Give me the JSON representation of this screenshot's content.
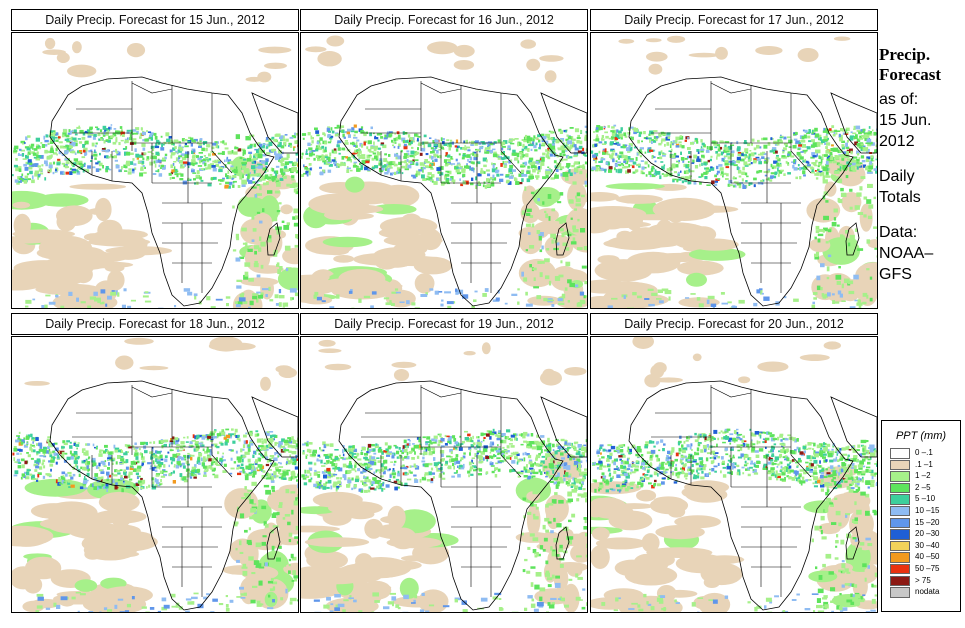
{
  "panels": [
    {
      "title": "Daily Precip. Forecast for  15 Jun., 2012",
      "seed": 15
    },
    {
      "title": "Daily Precip. Forecast for  16 Jun., 2012",
      "seed": 16
    },
    {
      "title": "Daily Precip. Forecast for  17 Jun., 2012",
      "seed": 17
    },
    {
      "title": "Daily Precip. Forecast for  18 Jun., 2012",
      "seed": 18
    },
    {
      "title": "Daily Precip. Forecast for  19 Jun., 2012",
      "seed": 19
    },
    {
      "title": "Daily Precip. Forecast for  20 Jun., 2012",
      "seed": 20
    }
  ],
  "sidebar": {
    "heading_line1": "Precip.",
    "heading_line2": "Forecast",
    "as_of_label": "as of:",
    "date_line1": "15 Jun.",
    "date_line2": "2012",
    "totals_line1": "Daily",
    "totals_line2": "Totals",
    "data_label": "Data:",
    "source_line1": "NOAA–",
    "source_line2": "GFS"
  },
  "legend": {
    "title": "PPT (mm)",
    "items": [
      {
        "label": "0 –.1",
        "color": "#ffffff"
      },
      {
        "label": ".1 –1",
        "color": "#e8d4b8"
      },
      {
        "label": "1 –2",
        "color": "#a6f08a"
      },
      {
        "label": "2 –5",
        "color": "#5ee35c"
      },
      {
        "label": "5 –10",
        "color": "#3dcf9c"
      },
      {
        "label": "10 –15",
        "color": "#8fbcf2"
      },
      {
        "label": "15 –20",
        "color": "#5f96ea"
      },
      {
        "label": "20 –30",
        "color": "#1f5fd6"
      },
      {
        "label": "30 –40",
        "color": "#f2d35a"
      },
      {
        "label": "40 –50",
        "color": "#f29a1f"
      },
      {
        "label": "50 –75",
        "color": "#e8320f"
      },
      {
        "label": "> 75",
        "color": "#8c1a14"
      },
      {
        "label": "nodata",
        "color": "#c8c8c8"
      }
    ]
  }
}
